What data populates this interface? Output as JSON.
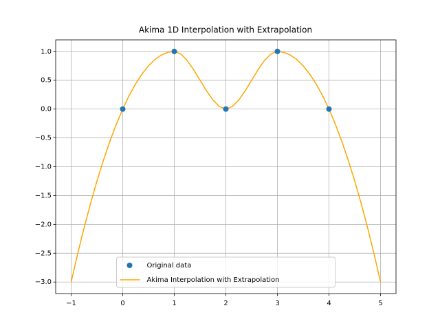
{
  "chart_data": {
    "type": "line",
    "title": "Akima 1D Interpolation with Extrapolation",
    "xlim": [
      -1.3,
      5.3
    ],
    "ylim": [
      -3.2,
      1.2
    ],
    "xticks": [
      {
        "value": -1,
        "label": "−1"
      },
      0,
      1,
      2,
      3,
      4,
      5
    ],
    "yticks": [
      {
        "value": -3,
        "label": "−3.0"
      },
      {
        "value": -2.5,
        "label": "−2.5"
      },
      {
        "value": -2,
        "label": "−2.0"
      },
      {
        "value": -1.5,
        "label": "−1.5"
      },
      {
        "value": -1,
        "label": "−1.0"
      },
      {
        "value": -0.5,
        "label": "−0.5"
      },
      {
        "value": 0,
        "label": "0.0"
      },
      {
        "value": 0.5,
        "label": "0.5"
      },
      {
        "value": 1,
        "label": "1.0"
      }
    ],
    "grid": true,
    "legend": "lower center",
    "series": [
      {
        "name": "Original data",
        "type": "scatter",
        "color": "#1f77b4",
        "x": [
          0,
          1,
          2,
          3,
          4
        ],
        "values": [
          0,
          1,
          0,
          1,
          0
        ]
      },
      {
        "name": "Akima Interpolation with Extrapolation",
        "type": "line",
        "color": "#ffa500",
        "x": [
          -1,
          -0.875,
          -0.75,
          -0.625,
          -0.5,
          -0.375,
          -0.25,
          -0.125,
          0,
          0.125,
          0.25,
          0.375,
          0.5,
          0.625,
          0.75,
          0.875,
          1,
          1.125,
          1.25,
          1.375,
          1.5,
          1.625,
          1.75,
          1.875,
          2,
          2.125,
          2.25,
          2.375,
          2.5,
          2.625,
          2.75,
          2.875,
          3,
          3.125,
          3.25,
          3.375,
          3.5,
          3.625,
          3.75,
          3.875,
          4,
          4.125,
          4.25,
          4.375,
          4.5,
          4.625,
          4.75,
          4.875,
          5
        ],
        "values": [
          -3,
          -2.515625,
          -2.0625,
          -1.640625,
          -1.25,
          -0.890625,
          -0.5625,
          -0.265625,
          0,
          0.234375,
          0.4375,
          0.609375,
          0.75,
          0.859375,
          0.9375,
          0.984375,
          1,
          0.95703125,
          0.84375,
          0.68359375,
          0.5,
          0.31640625,
          0.15625,
          0.04296875,
          0,
          0.04296875,
          0.15625,
          0.31640625,
          0.5,
          0.68359375,
          0.84375,
          0.95703125,
          1,
          0.984375,
          0.9375,
          0.859375,
          0.75,
          0.609375,
          0.4375,
          0.234375,
          0,
          -0.265625,
          -0.5625,
          -0.890625,
          -1.25,
          -1.640625,
          -2.0625,
          -2.515625,
          -3
        ]
      }
    ]
  }
}
